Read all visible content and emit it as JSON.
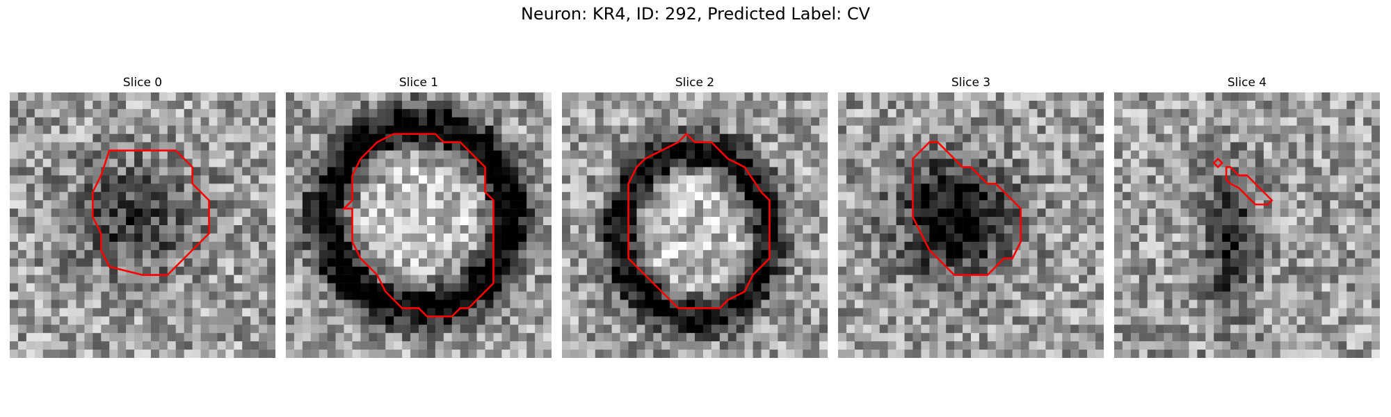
{
  "figure": {
    "title": "Neuron: KR4, ID: 292, Predicted Label: CV",
    "contour_color": "#ff0000",
    "colormap": "gray",
    "grid_size": 32
  },
  "panels": [
    {
      "title": "Slice 0",
      "dark_blob": {
        "cx": 15,
        "cy": 15,
        "rx": 9,
        "ry": 8,
        "ring": false,
        "strength": 0.4
      },
      "contours": [
        [
          [
            12,
            7
          ],
          [
            20,
            7
          ],
          [
            22,
            9
          ],
          [
            22,
            11
          ],
          [
            24,
            13
          ],
          [
            24,
            17
          ],
          [
            20,
            21
          ],
          [
            19,
            22
          ],
          [
            16,
            22
          ],
          [
            12,
            21
          ],
          [
            11,
            19
          ],
          [
            11,
            17
          ],
          [
            10,
            15
          ],
          [
            10,
            12
          ],
          [
            11,
            10
          ]
        ]
      ]
    },
    {
      "title": "Slice 1",
      "dark_blob": {
        "cx": 16,
        "cy": 15,
        "rx": 11,
        "ry": 11,
        "ring": true,
        "strength": 0.7
      },
      "contours": [
        [
          [
            13,
            5
          ],
          [
            18,
            5
          ],
          [
            19,
            6
          ],
          [
            21,
            6
          ],
          [
            24,
            9
          ],
          [
            24,
            12
          ],
          [
            25,
            13
          ],
          [
            25,
            23
          ],
          [
            23,
            25
          ],
          [
            22,
            26
          ],
          [
            21,
            26
          ],
          [
            20,
            27
          ],
          [
            17,
            27
          ],
          [
            16,
            26
          ],
          [
            14,
            26
          ],
          [
            12,
            24
          ],
          [
            11,
            22
          ],
          [
            9,
            20
          ],
          [
            8,
            18
          ],
          [
            8,
            14
          ],
          [
            7,
            14
          ],
          [
            8,
            13
          ],
          [
            8,
            10
          ],
          [
            9,
            8
          ],
          [
            11,
            6
          ]
        ]
      ]
    },
    {
      "title": "Slice 2",
      "dark_blob": {
        "cx": 16,
        "cy": 17,
        "rx": 9,
        "ry": 10,
        "ring": true,
        "strength": 0.65
      },
      "contours": [
        [
          [
            14,
            6
          ],
          [
            15,
            5
          ],
          [
            16,
            6
          ],
          [
            18,
            6
          ],
          [
            20,
            8
          ],
          [
            22,
            9
          ],
          [
            24,
            12
          ],
          [
            25,
            13
          ],
          [
            25,
            20
          ],
          [
            23,
            22
          ],
          [
            22,
            24
          ],
          [
            20,
            25
          ],
          [
            19,
            26
          ],
          [
            14,
            26
          ],
          [
            12,
            24
          ],
          [
            10,
            22
          ],
          [
            8,
            20
          ],
          [
            8,
            11
          ],
          [
            9,
            9
          ],
          [
            10,
            8
          ],
          [
            12,
            7
          ]
        ]
      ]
    },
    {
      "title": "Slice 3",
      "dark_blob": {
        "cx": 14,
        "cy": 15,
        "rx": 8,
        "ry": 8,
        "ring": false,
        "strength": 0.7
      },
      "contours": [
        [
          [
            11,
            6
          ],
          [
            12,
            6
          ],
          [
            14,
            8
          ],
          [
            15,
            9
          ],
          [
            16,
            9
          ],
          [
            18,
            11
          ],
          [
            19,
            11
          ],
          [
            20,
            12
          ],
          [
            22,
            14
          ],
          [
            22,
            18
          ],
          [
            21,
            20
          ],
          [
            20,
            20
          ],
          [
            19,
            21
          ],
          [
            18,
            22
          ],
          [
            14,
            22
          ],
          [
            13,
            21
          ],
          [
            12,
            20
          ],
          [
            11,
            19
          ],
          [
            10,
            17
          ],
          [
            9,
            15
          ],
          [
            9,
            8
          ]
        ]
      ]
    },
    {
      "title": "Slice 4",
      "dark_blob": {
        "cx": 14,
        "cy": 18,
        "rx": 4,
        "ry": 10,
        "ring": false,
        "strength": 0.45
      },
      "contours": [
        [
          [
            12.5,
            8
          ],
          [
            13,
            8.5
          ],
          [
            12.5,
            9
          ],
          [
            12,
            8.5
          ]
        ],
        [
          [
            13.5,
            9
          ],
          [
            14,
            9
          ],
          [
            15,
            10
          ],
          [
            16,
            10
          ],
          [
            18,
            12
          ],
          [
            19,
            13
          ],
          [
            18.5,
            13.5
          ],
          [
            17,
            13.5
          ],
          [
            16,
            12.5
          ],
          [
            15,
            11.5
          ],
          [
            14,
            11
          ],
          [
            13.5,
            10.5
          ],
          [
            13.5,
            10
          ]
        ]
      ]
    }
  ]
}
